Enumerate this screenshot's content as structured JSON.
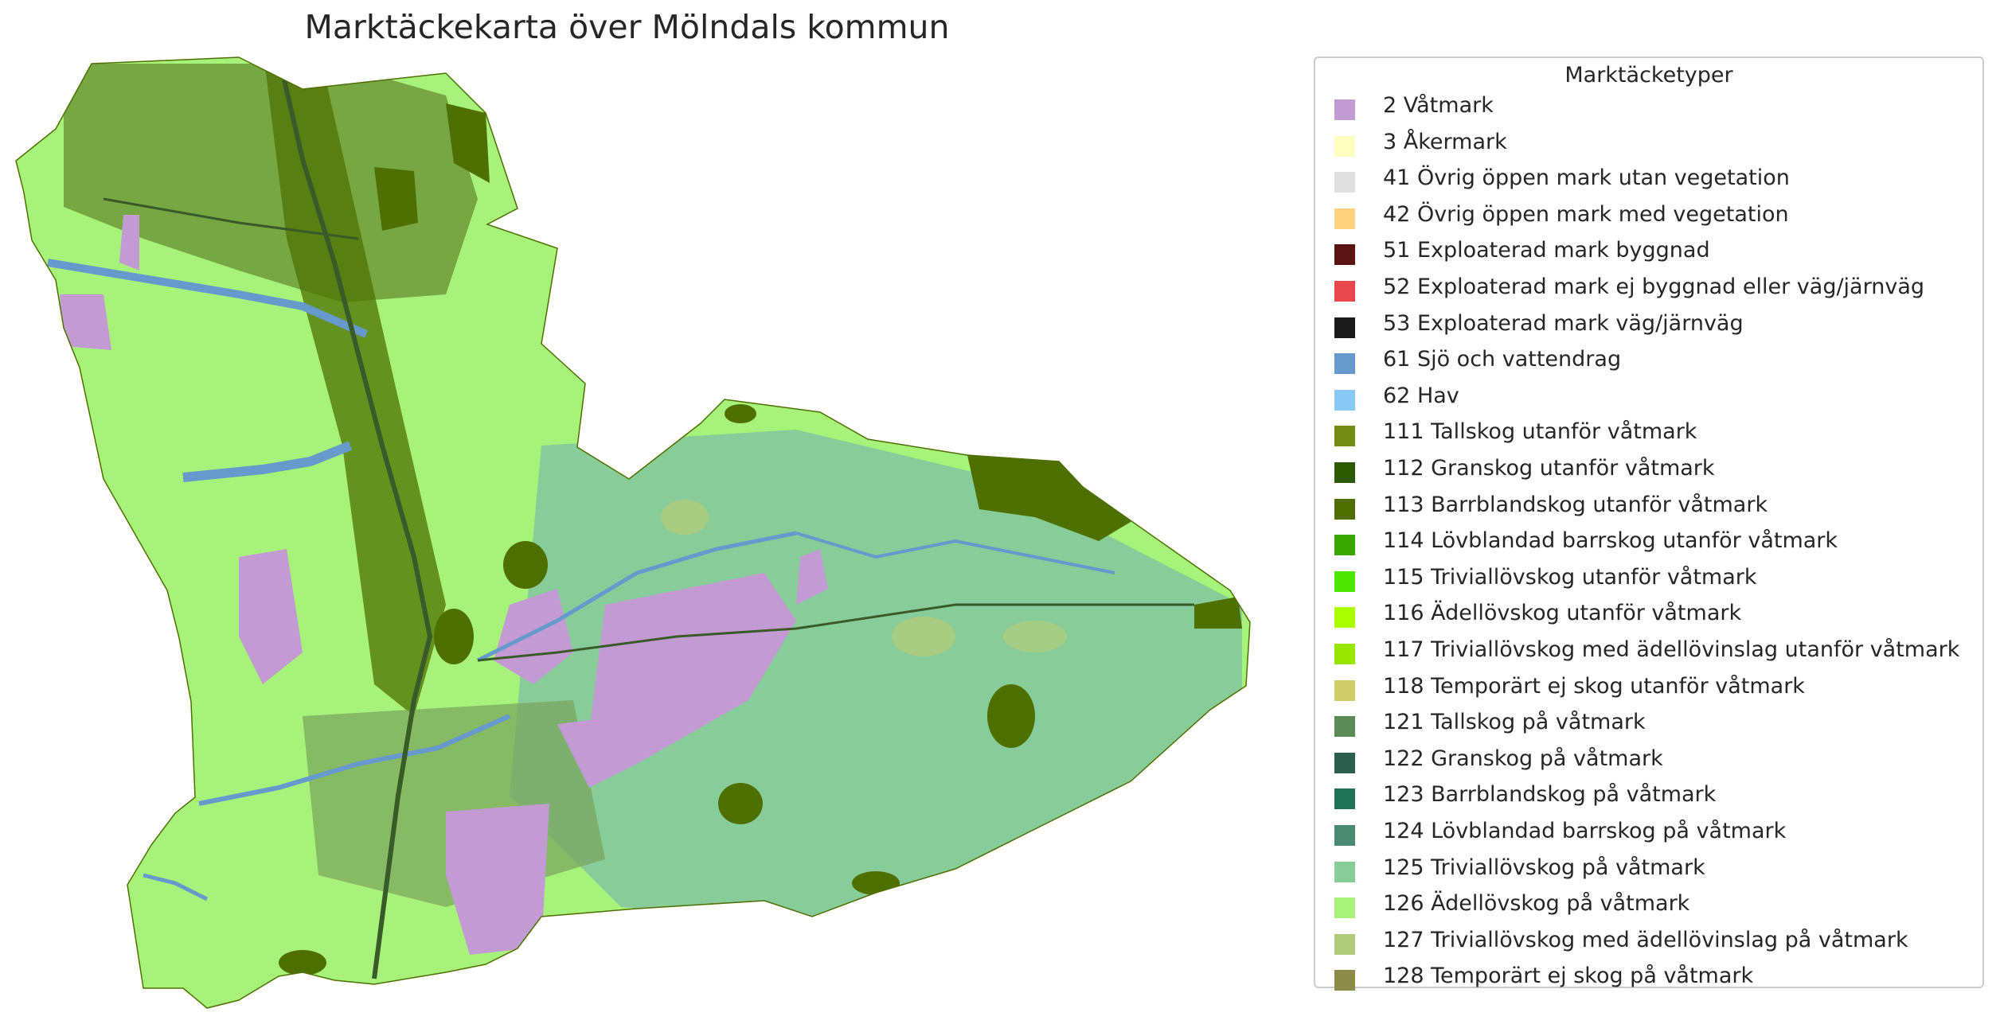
{
  "title": "Marktäckekarta över Mölndals kommun",
  "legend": {
    "title": "Marktäcketyper",
    "items": [
      {
        "code": 2,
        "label": "2 Våtmark",
        "color": "#c39bd3"
      },
      {
        "code": 3,
        "label": "3 Åkermark",
        "color": "#ffffbf"
      },
      {
        "code": 41,
        "label": "41 Övrig öppen mark utan vegetation",
        "color": "#e0e0e0"
      },
      {
        "code": 42,
        "label": "42 Övrig öppen mark med vegetation",
        "color": "#ffd27f"
      },
      {
        "code": 51,
        "label": "51 Exploaterad mark byggnad",
        "color": "#5a1414"
      },
      {
        "code": 52,
        "label": "52 Exploaterad mark ej byggnad eller väg/järnväg",
        "color": "#e8474d"
      },
      {
        "code": 53,
        "label": "53 Exploaterad mark väg/järnväg",
        "color": "#1a1a1a"
      },
      {
        "code": 61,
        "label": "61 Sjö och vattendrag",
        "color": "#6699cc"
      },
      {
        "code": 62,
        "label": "62 Hav",
        "color": "#89c9f5"
      },
      {
        "code": 111,
        "label": "111 Tallskog utanför våtmark",
        "color": "#748b14"
      },
      {
        "code": 112,
        "label": "112 Granskog utanför våtmark",
        "color": "#2d5a00"
      },
      {
        "code": 113,
        "label": "113 Barrblandskog utanför våtmark",
        "color": "#4f7000"
      },
      {
        "code": 114,
        "label": "114 Lövblandad barrskog utanför våtmark",
        "color": "#38a800"
      },
      {
        "code": 115,
        "label": "115 Triviallövskog utanför våtmark",
        "color": "#4ce600"
      },
      {
        "code": 116,
        "label": "116 Ädellövskog utanför våtmark",
        "color": "#aaff00"
      },
      {
        "code": 117,
        "label": "117 Triviallövskog med ädellövinslag utanför våtmark",
        "color": "#98e600"
      },
      {
        "code": 118,
        "label": "118 Temporärt ej skog utanför våtmark",
        "color": "#cfcc6a"
      },
      {
        "code": 121,
        "label": "121 Tallskog på våtmark",
        "color": "#5a8a55"
      },
      {
        "code": 122,
        "label": "122 Granskog på våtmark",
        "color": "#2e5e4e"
      },
      {
        "code": 123,
        "label": "123 Barrblandskog på våtmark",
        "color": "#1e7256"
      },
      {
        "code": 124,
        "label": "124 Lövblandad barrskog på våtmark",
        "color": "#4a8a72"
      },
      {
        "code": 125,
        "label": "125 Triviallövskog på våtmark",
        "color": "#88cc99"
      },
      {
        "code": 126,
        "label": "126 Ädellövskog på våtmark",
        "color": "#a6f27a"
      },
      {
        "code": 127,
        "label": "127 Triviallövskog med ädellövinslag på våtmark",
        "color": "#b0cc7a"
      },
      {
        "code": 128,
        "label": "128 Temporärt ej skog på våtmark",
        "color": "#8c8a48"
      }
    ]
  }
}
